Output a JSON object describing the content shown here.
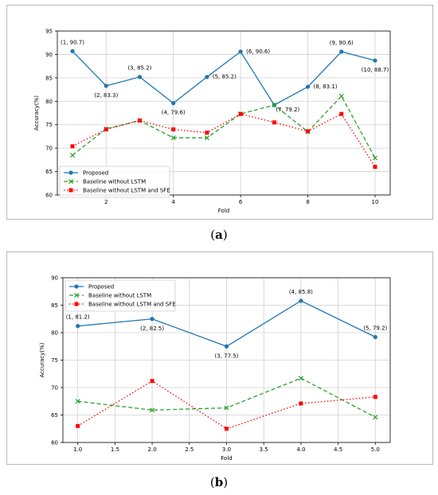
{
  "chart_data": [
    {
      "panel": "a",
      "type": "line",
      "title": "",
      "xlabel": "Fold",
      "ylabel": "Accuracy(%)",
      "xlim": [
        0.55,
        10.45
      ],
      "ylim": [
        60,
        95
      ],
      "xticks": [
        2,
        4,
        6,
        8,
        10
      ],
      "xtick_labels": [
        "2",
        "4",
        "6",
        "8",
        "10"
      ],
      "yticks": [
        60,
        65,
        70,
        75,
        80,
        85,
        90,
        95
      ],
      "ytick_labels": [
        "60",
        "65",
        "70",
        "75",
        "80",
        "85",
        "90",
        "95"
      ],
      "grid": true,
      "legend_position": "lower-left",
      "x": [
        1,
        2,
        3,
        4,
        5,
        6,
        7,
        8,
        9,
        10
      ],
      "series": [
        {
          "name": "Proposed",
          "color": "#1f77b4",
          "style": "solid",
          "marker": "circle",
          "values": [
            90.7,
            83.3,
            85.2,
            79.6,
            85.2,
            90.6,
            79.2,
            83.1,
            90.6,
            88.7
          ]
        },
        {
          "name": "Baseline without LSTM",
          "color": "#2ca02c",
          "style": "dashed",
          "marker": "x",
          "values": [
            68.5,
            74.1,
            75.9,
            72.2,
            72.2,
            77.3,
            79.2,
            73.5,
            81.1,
            67.9
          ]
        },
        {
          "name": "Baseline without LSTM and SFE",
          "color": "#ff0000",
          "style": "dotted",
          "marker": "square",
          "values": [
            70.4,
            74.0,
            75.9,
            74.0,
            73.3,
            77.3,
            75.5,
            73.6,
            77.3,
            66.0
          ]
        }
      ],
      "annotations": [
        {
          "text": "(1, 90.7)",
          "x": 1,
          "y": 90.7,
          "place": "above"
        },
        {
          "text": "(2, 83.3)",
          "x": 2,
          "y": 83.3,
          "place": "below"
        },
        {
          "text": "(3, 85.2)",
          "x": 3,
          "y": 85.2,
          "place": "above"
        },
        {
          "text": "(4, 79.6)",
          "x": 4,
          "y": 79.6,
          "place": "below"
        },
        {
          "text": "(5, 85.2)",
          "x": 5,
          "y": 85.2,
          "place": "right"
        },
        {
          "text": "(6, 90.6)",
          "x": 6,
          "y": 90.6,
          "place": "right"
        },
        {
          "text": "(7, 79.2)",
          "x": 7,
          "y": 79.2,
          "place": "below-right"
        },
        {
          "text": "(8, 83.1)",
          "x": 8,
          "y": 83.1,
          "place": "right"
        },
        {
          "text": "(9, 90.6)",
          "x": 9,
          "y": 90.6,
          "place": "above"
        },
        {
          "text": "(10, 88.7)",
          "x": 10,
          "y": 88.7,
          "place": "below"
        }
      ]
    },
    {
      "panel": "b",
      "type": "line",
      "title": "",
      "xlabel": "Fold",
      "ylabel": "Accuracy(%)",
      "xlim": [
        0.8,
        5.2
      ],
      "ylim": [
        60,
        90
      ],
      "xticks": [
        1.0,
        1.5,
        2.0,
        2.5,
        3.0,
        3.5,
        4.0,
        4.5,
        5.0
      ],
      "xtick_labels": [
        "1.0",
        "1.5",
        "2.0",
        "2.5",
        "3.0",
        "3.5",
        "4.0",
        "4.5",
        "5.0"
      ],
      "yticks": [
        60,
        65,
        70,
        75,
        80,
        85,
        90
      ],
      "ytick_labels": [
        "60",
        "65",
        "70",
        "75",
        "80",
        "85",
        "90"
      ],
      "grid": true,
      "legend_position": "upper-left",
      "x": [
        1,
        2,
        3,
        4,
        5
      ],
      "series": [
        {
          "name": "Proposed",
          "color": "#1f77b4",
          "style": "solid",
          "marker": "circle",
          "values": [
            81.2,
            82.5,
            77.5,
            85.8,
            79.2
          ]
        },
        {
          "name": "Baseline without LSTM",
          "color": "#2ca02c",
          "style": "dashed",
          "marker": "x",
          "values": [
            67.5,
            65.9,
            66.3,
            71.7,
            64.6
          ]
        },
        {
          "name": "Baseline without LSTM and SFE",
          "color": "#ff0000",
          "style": "dotted",
          "marker": "square",
          "values": [
            63.0,
            71.2,
            62.5,
            67.1,
            68.3
          ]
        }
      ],
      "annotations": [
        {
          "text": "(1, 81.2)",
          "x": 1,
          "y": 81.2,
          "place": "above"
        },
        {
          "text": "(2, 82.5)",
          "x": 2,
          "y": 82.5,
          "place": "below"
        },
        {
          "text": "(3, 77.5)",
          "x": 3,
          "y": 77.5,
          "place": "below"
        },
        {
          "text": "(4, 85.8)",
          "x": 4,
          "y": 85.8,
          "place": "above"
        },
        {
          "text": "(5, 79.2)",
          "x": 5,
          "y": 79.2,
          "place": "above"
        }
      ]
    }
  ],
  "captions": {
    "a_open": "(",
    "a_letter": "a",
    "a_close": ")",
    "b_open": "(",
    "b_letter": "b",
    "b_close": ")"
  }
}
